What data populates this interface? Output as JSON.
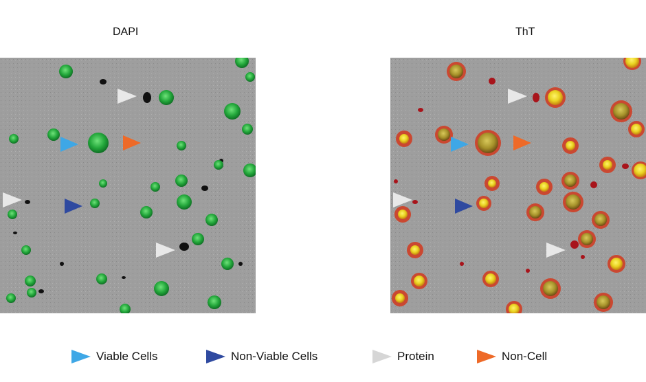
{
  "panels": {
    "left_title": "DAPI",
    "right_title": "ThT"
  },
  "legend": [
    {
      "label": "Viable Cells",
      "color": "#3ea7e6"
    },
    {
      "label": "Non-Viable Cells",
      "color": "#2f4aa0"
    },
    {
      "label": "Protein",
      "color": "#d6d6d6"
    },
    {
      "label": "Non-Cell",
      "color": "#ee6a28"
    }
  ],
  "colors": {
    "background": "#9d9d9d",
    "dapi_cell": "#2aa83a",
    "tht_cell_core": "#f1e234",
    "tht_halo": "#d23a1e"
  }
}
